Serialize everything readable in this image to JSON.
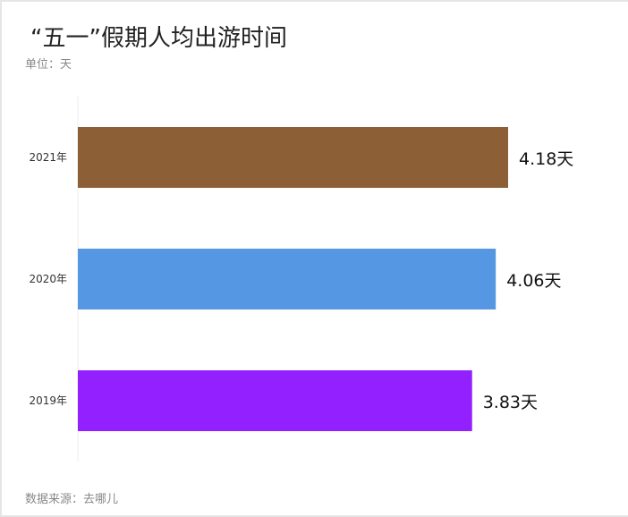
{
  "chart_data": {
    "type": "bar",
    "orientation": "horizontal",
    "title": "“五一”假期人均出游时间",
    "subtitle": "单位：天",
    "source": "数据来源：去哪儿",
    "categories": [
      "2021年",
      "2020年",
      "2019年"
    ],
    "values": [
      4.18,
      4.06,
      3.83
    ],
    "data_labels": [
      "4.18天",
      "4.06天",
      "3.83天"
    ],
    "colors": [
      "#8c5f36",
      "#5597e2",
      "#9321ff"
    ],
    "xlim": [
      0,
      4.18
    ],
    "grid": false,
    "legend": "none"
  }
}
